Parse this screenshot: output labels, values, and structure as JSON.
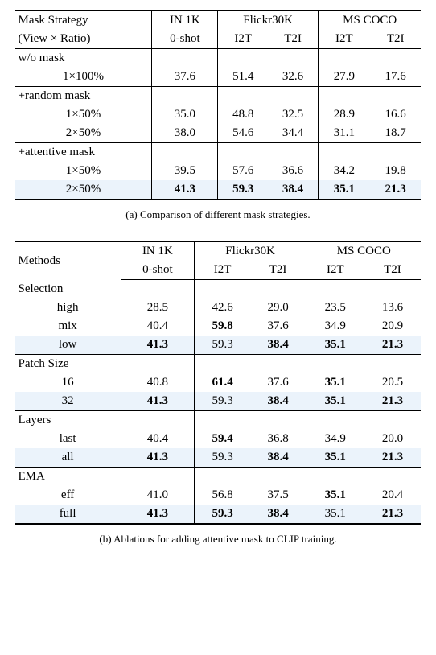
{
  "tableA": {
    "headers": {
      "strategy_line1": "Mask Strategy",
      "strategy_line2": "(View × Ratio)",
      "in1k": "IN 1K",
      "flickr": "Flickr30K",
      "coco": "MS COCO",
      "zeroshot": "0-shot",
      "i2t": "I2T",
      "t2i": "T2I"
    },
    "sections": [
      {
        "label": "w/o mask",
        "rows": [
          {
            "name": "1×100%",
            "vals": [
              "37.6",
              "51.4",
              "32.6",
              "27.9",
              "17.6"
            ],
            "bold": [
              false,
              false,
              false,
              false,
              false
            ]
          }
        ]
      },
      {
        "label": "+random mask",
        "rows": [
          {
            "name": "1×50%",
            "vals": [
              "35.0",
              "48.8",
              "32.5",
              "28.9",
              "16.6"
            ],
            "bold": [
              false,
              false,
              false,
              false,
              false
            ]
          },
          {
            "name": "2×50%",
            "vals": [
              "38.0",
              "54.6",
              "34.4",
              "31.1",
              "18.7"
            ],
            "bold": [
              false,
              false,
              false,
              false,
              false
            ]
          }
        ]
      },
      {
        "label": "+attentive mask",
        "rows": [
          {
            "name": "1×50%",
            "vals": [
              "39.5",
              "57.6",
              "36.6",
              "34.2",
              "19.8"
            ],
            "bold": [
              false,
              false,
              false,
              false,
              false
            ]
          },
          {
            "name": "2×50%",
            "vals": [
              "41.3",
              "59.3",
              "38.4",
              "35.1",
              "21.3"
            ],
            "bold": [
              true,
              true,
              true,
              true,
              true
            ],
            "highlight": true
          }
        ]
      }
    ],
    "caption": "(a) Comparison of different mask strategies."
  },
  "tableB": {
    "headers": {
      "methods": "Methods",
      "in1k": "IN 1K",
      "flickr": "Flickr30K",
      "coco": "MS COCO",
      "zeroshot": "0-shot",
      "i2t": "I2T",
      "t2i": "T2I"
    },
    "sections": [
      {
        "label": "Selection",
        "rows": [
          {
            "name": "high",
            "vals": [
              "28.5",
              "42.6",
              "29.0",
              "23.5",
              "13.6"
            ],
            "bold": [
              false,
              false,
              false,
              false,
              false
            ]
          },
          {
            "name": "mix",
            "vals": [
              "40.4",
              "59.8",
              "37.6",
              "34.9",
              "20.9"
            ],
            "bold": [
              false,
              true,
              false,
              false,
              false
            ]
          },
          {
            "name": "low",
            "vals": [
              "41.3",
              "59.3",
              "38.4",
              "35.1",
              "21.3"
            ],
            "bold": [
              true,
              false,
              true,
              true,
              true
            ],
            "highlight": true
          }
        ]
      },
      {
        "label": "Patch Size",
        "rows": [
          {
            "name": "16",
            "vals": [
              "40.8",
              "61.4",
              "37.6",
              "35.1",
              "20.5"
            ],
            "bold": [
              false,
              true,
              false,
              true,
              false
            ]
          },
          {
            "name": "32",
            "vals": [
              "41.3",
              "59.3",
              "38.4",
              "35.1",
              "21.3"
            ],
            "bold": [
              true,
              false,
              true,
              true,
              true
            ],
            "highlight": true
          }
        ]
      },
      {
        "label": "Layers",
        "rows": [
          {
            "name": "last",
            "vals": [
              "40.4",
              "59.4",
              "36.8",
              "34.9",
              "20.0"
            ],
            "bold": [
              false,
              true,
              false,
              false,
              false
            ]
          },
          {
            "name": "all",
            "vals": [
              "41.3",
              "59.3",
              "38.4",
              "35.1",
              "21.3"
            ],
            "bold": [
              true,
              false,
              true,
              true,
              true
            ],
            "highlight": true
          }
        ]
      },
      {
        "label": "EMA",
        "rows": [
          {
            "name": "eff",
            "vals": [
              "41.0",
              "56.8",
              "37.5",
              "35.1",
              "20.4"
            ],
            "bold": [
              false,
              false,
              false,
              true,
              false
            ]
          },
          {
            "name": "full",
            "vals": [
              "41.3",
              "59.3",
              "38.4",
              "35.1",
              "21.3"
            ],
            "bold": [
              true,
              true,
              true,
              false,
              true
            ],
            "highlight": true
          }
        ]
      }
    ],
    "caption": "(b) Ablations for adding attentive mask to CLIP training."
  },
  "style": {
    "highlight_bg": "#ebf3fb",
    "rule_color": "#000000",
    "font_family": "Times New Roman",
    "body_fontsize": 15,
    "caption_fontsize": 13
  }
}
